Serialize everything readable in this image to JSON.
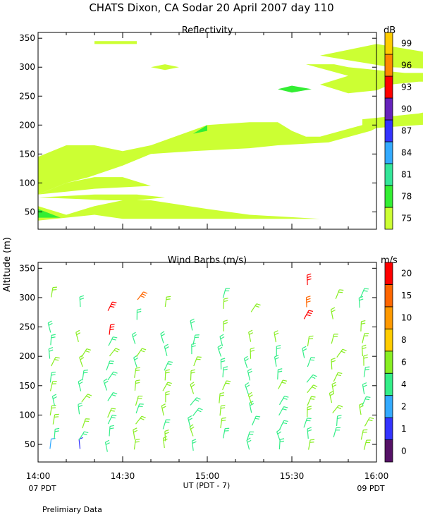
{
  "title": "CHATS Dixon, CA  Sodar  20 April 2007  day 110",
  "footer_note": "Prelimiary Data",
  "ylabel": "Altitude (m)",
  "xlabel": "UT  (PDT - 7)",
  "x_ticks": [
    "14:00",
    "14:30",
    "15:00",
    "15:30",
    "16:00"
  ],
  "x_start_label": "07 PDT",
  "x_end_label": "09 PDT",
  "y_ticks": [
    "50",
    "100",
    "150",
    "200",
    "250",
    "300",
    "350"
  ],
  "colors": {
    "refl": [
      "#ccff33",
      "#33ee33",
      "#33e699",
      "#33aaff",
      "#3333ff",
      "#6622bb",
      "#ff0000",
      "#ff8800",
      "#ffcc00",
      "#330033"
    ],
    "wind": [
      "#551166",
      "#3333ff",
      "#33aaff",
      "#33ee88",
      "#88ee22",
      "#ffcc00",
      "#ff9900",
      "#ff6600",
      "#ff0000"
    ]
  },
  "chart_data": [
    {
      "type": "heatmap",
      "title": "Reflectivity",
      "xlabel": "UT  (PDT - 7)",
      "ylabel": "Altitude (m)",
      "xlim": [
        "14:00",
        "16:00"
      ],
      "ylim": [
        20,
        360
      ],
      "colorbar_label": "dB",
      "colorbar_levels": [
        75,
        78,
        81,
        84,
        87,
        90,
        93,
        96,
        99
      ],
      "regions": [
        {
          "level": 75,
          "points": [
            [
              840,
              160
            ],
            [
              860,
              160
            ],
            [
              870,
              150
            ],
            [
              890,
              120
            ],
            [
              880,
              100
            ],
            [
              860,
              105
            ],
            [
              840,
              130
            ],
            [
              825,
              150
            ],
            [
              810,
              160
            ],
            [
              800,
              150
            ],
            [
              820,
              120
            ],
            [
              860,
              85
            ],
            [
              900,
              82
            ],
            [
              920,
              90
            ],
            [
              910,
              130
            ],
            [
              870,
              160
            ],
            [
              865,
              170
            ],
            [
              880,
              180
            ],
            [
              840,
              190
            ],
            [
              828,
              167
            ],
            [
              810,
              168
            ],
            [
              820,
              145
            ]
          ]
        },
        {
          "level": 75,
          "points": [
            [
              840,
              160
            ],
            [
              860,
              160
            ],
            [
              870,
              150
            ],
            [
              890,
              120
            ],
            [
              880,
              100
            ]
          ]
        },
        {
          "level": 75,
          "points": [
            [
              840,
              150
            ],
            [
              840,
              100
            ],
            [
              860,
              85
            ],
            [
              880,
              80
            ],
            [
              860,
              100
            ],
            [
              858,
              120
            ],
            [
              870,
              125
            ],
            [
              880,
              130
            ],
            [
              860,
              140
            ],
            [
              845,
              155
            ]
          ]
        },
        {
          "level": 75,
          "points": [
            [
              840,
              87
            ],
            [
              860,
              80
            ],
            [
              880,
              60
            ],
            [
              870,
              50
            ],
            [
              930,
              40
            ],
            [
              960,
              40
            ],
            [
              940,
              50
            ],
            [
              900,
              55
            ],
            [
              880,
              70
            ],
            [
              855,
              85
            ]
          ]
        },
        {
          "level": 75,
          "points": [
            [
              840,
              160
            ],
            [
              840,
              175
            ],
            [
              860,
              180
            ],
            [
              870,
              170
            ],
            [
              900,
              170
            ]
          ]
        },
        {
          "level": 75,
          "points": [
            [
              868,
              345
            ],
            [
              880,
              345
            ],
            [
              880,
              340
            ],
            [
              868,
              340
            ]
          ]
        },
        {
          "level": 75,
          "points": [
            [
              910,
              205
            ],
            [
              915,
              295
            ],
            [
              920,
              300
            ],
            [
              910,
              300
            ]
          ]
        },
        {
          "level": 75,
          "points": [
            [
              1010,
              40
            ],
            [
              1030,
              40
            ],
            [
              1030,
              50
            ],
            [
              1020,
              50
            ]
          ]
        },
        {
          "level": 78,
          "points": [
            [
              840,
              55
            ],
            [
              840,
              40
            ],
            [
              850,
              40
            ]
          ]
        },
        {
          "level": 78,
          "points": [
            [
              920,
              180
            ],
            [
              935,
              180
            ],
            [
              935,
              200
            ]
          ]
        },
        {
          "level": 78,
          "points": [
            [
              950,
              262
            ],
            [
              956,
              268
            ],
            [
              962,
              262
            ],
            [
              956,
              256
            ]
          ]
        }
      ]
    },
    {
      "type": "scatter",
      "title": "Wind Barbs (m/s)",
      "xlabel": "UT  (PDT - 7)",
      "ylabel": "Altitude (m)",
      "xlim": [
        "14:00",
        "16:00"
      ],
      "ylim": [
        20,
        360
      ],
      "colorbar_label": "m/s",
      "colorbar_levels": [
        0,
        1,
        2,
        4,
        6,
        8,
        10,
        15,
        20
      ]
    }
  ]
}
